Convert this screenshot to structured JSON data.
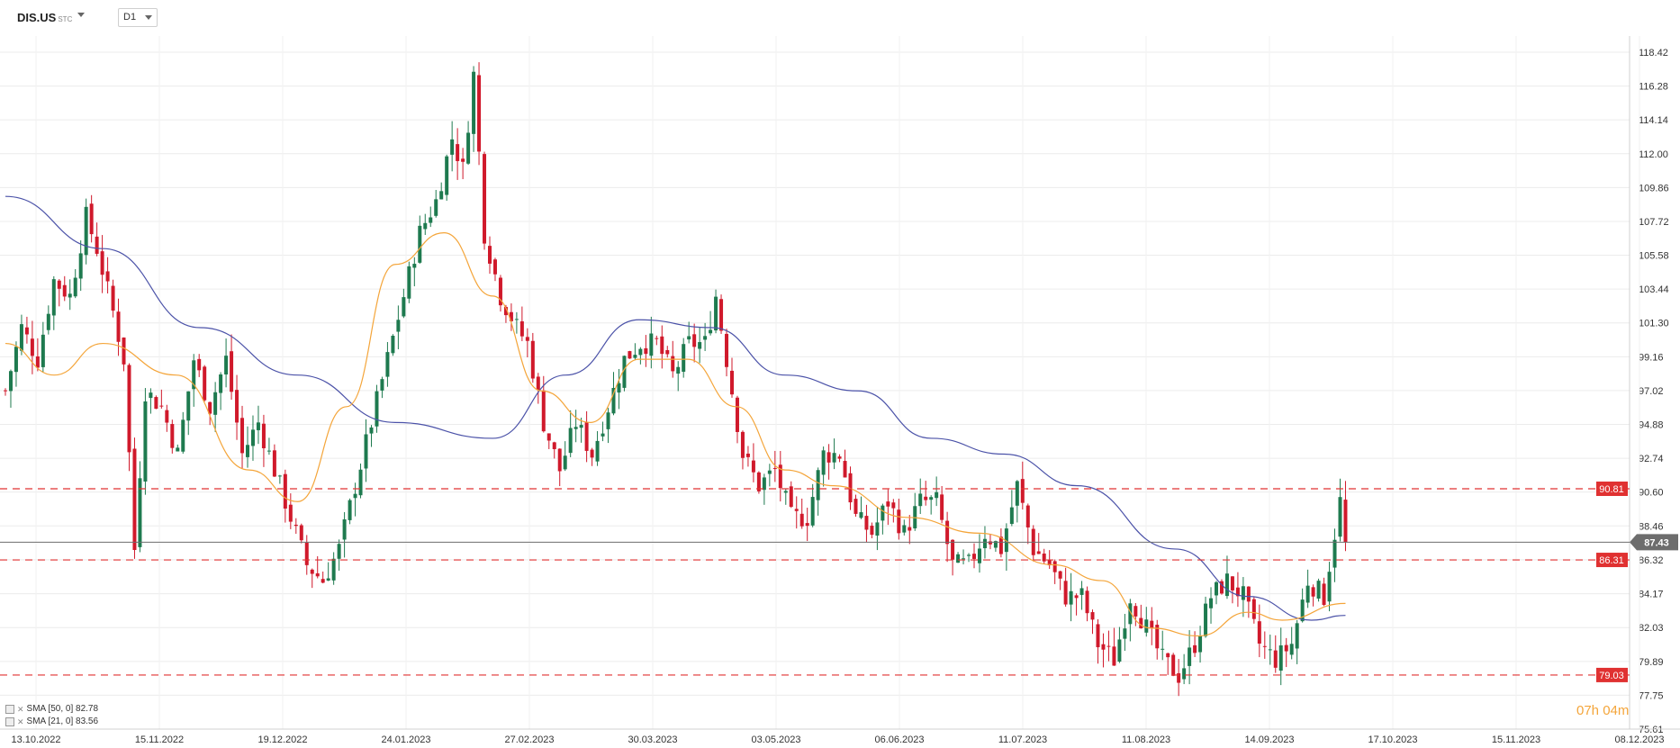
{
  "header": {
    "symbol": "DIS.US",
    "symbol_sub": "STC",
    "timeframe": "D1"
  },
  "indicators": [
    {
      "label": "SMA [50, 0] 82.78"
    },
    {
      "label": "SMA [21, 0] 83.56"
    }
  ],
  "countdown": "07h 04m",
  "colors": {
    "up": "#1e7a4f",
    "down": "#d0192b",
    "sma50": "#4b52a8",
    "sma21": "#f4a53a",
    "level": "#e03131",
    "current": "#6d6d6d"
  },
  "chart_data": {
    "type": "candlestick",
    "y_axis": {
      "min": 75.61,
      "max": 118.42,
      "position": "right",
      "ticks": [
        118.42,
        116.28,
        114.14,
        112.0,
        109.86,
        107.72,
        105.58,
        103.44,
        101.3,
        99.16,
        97.02,
        94.88,
        92.74,
        90.6,
        88.46,
        86.32,
        84.17,
        82.03,
        79.89,
        77.75,
        75.61
      ]
    },
    "x_axis": {
      "labels": [
        "13.10.2022",
        "15.11.2022",
        "19.12.2022",
        "24.01.2023",
        "27.02.2023",
        "30.03.2023",
        "03.05.2023",
        "06.06.2023",
        "11.07.2023",
        "11.08.2023",
        "14.09.2023",
        "17.10.2023",
        "15.11.2023",
        "08.12.2023"
      ]
    },
    "horizontal_levels": [
      90.81,
      86.31,
      79.03
    ],
    "current_price": 87.43,
    "grid": true,
    "series_path": [
      [
        0,
        97
      ],
      [
        3,
        101
      ],
      [
        6,
        99
      ],
      [
        9,
        104
      ],
      [
        12,
        103
      ],
      [
        15,
        108
      ],
      [
        17,
        106
      ],
      [
        20,
        102
      ],
      [
        22,
        99
      ],
      [
        24,
        87
      ],
      [
        26,
        97
      ],
      [
        29,
        96
      ],
      [
        32,
        93
      ],
      [
        35,
        99
      ],
      [
        38,
        96
      ],
      [
        41,
        99
      ],
      [
        44,
        93
      ],
      [
        47,
        95
      ],
      [
        50,
        92
      ],
      [
        53,
        89
      ],
      [
        56,
        86
      ],
      [
        59,
        85
      ],
      [
        62,
        87
      ],
      [
        65,
        91
      ],
      [
        68,
        95
      ],
      [
        71,
        99
      ],
      [
        74,
        103
      ],
      [
        77,
        107
      ],
      [
        80,
        109
      ],
      [
        83,
        113
      ],
      [
        85,
        111
      ],
      [
        87,
        117
      ],
      [
        89,
        107
      ],
      [
        92,
        103
      ],
      [
        95,
        101
      ],
      [
        97,
        100
      ],
      [
        100,
        95
      ],
      [
        103,
        92
      ],
      [
        106,
        95
      ],
      [
        109,
        93
      ],
      [
        112,
        96
      ],
      [
        115,
        99
      ],
      [
        118,
        100
      ],
      [
        121,
        100
      ],
      [
        124,
        98
      ],
      [
        127,
        100
      ],
      [
        130,
        100
      ],
      [
        132,
        103
      ],
      [
        134,
        99
      ],
      [
        137,
        93
      ],
      [
        140,
        91
      ],
      [
        143,
        92
      ],
      [
        146,
        89
      ],
      [
        149,
        89
      ],
      [
        152,
        93
      ],
      [
        155,
        93
      ],
      [
        158,
        89
      ],
      [
        161,
        88
      ],
      [
        164,
        90
      ],
      [
        167,
        88
      ],
      [
        170,
        90
      ],
      [
        173,
        90
      ],
      [
        176,
        86
      ],
      [
        179,
        86
      ],
      [
        182,
        88
      ],
      [
        185,
        87
      ],
      [
        188,
        91
      ],
      [
        191,
        87
      ],
      [
        194,
        86
      ],
      [
        197,
        84
      ],
      [
        200,
        84
      ],
      [
        203,
        81
      ],
      [
        206,
        80
      ],
      [
        209,
        84
      ],
      [
        212,
        82
      ],
      [
        215,
        80
      ],
      [
        218,
        79
      ],
      [
        221,
        81
      ],
      [
        224,
        84
      ],
      [
        227,
        85
      ],
      [
        230,
        84
      ],
      [
        233,
        81
      ],
      [
        236,
        80
      ],
      [
        239,
        81
      ],
      [
        242,
        85
      ],
      [
        245,
        84
      ],
      [
        248,
        90
      ],
      [
        249,
        87.43
      ]
    ],
    "sma50": [
      [
        0,
        109.3
      ],
      [
        20,
        106
      ],
      [
        40,
        101
      ],
      [
        60,
        98
      ],
      [
        80,
        95
      ],
      [
        100,
        94
      ],
      [
        115,
        98
      ],
      [
        130,
        101.5
      ],
      [
        145,
        101
      ],
      [
        160,
        98
      ],
      [
        175,
        97
      ],
      [
        190,
        94
      ],
      [
        205,
        93
      ],
      [
        220,
        91
      ],
      [
        240,
        87
      ],
      [
        255,
        84
      ],
      [
        268,
        82.5
      ],
      [
        275,
        82.8
      ]
    ],
    "sma21": [
      [
        0,
        100
      ],
      [
        10,
        98
      ],
      [
        20,
        100
      ],
      [
        35,
        98
      ],
      [
        50,
        92
      ],
      [
        60,
        90
      ],
      [
        70,
        96
      ],
      [
        80,
        105
      ],
      [
        90,
        107
      ],
      [
        100,
        103
      ],
      [
        110,
        97
      ],
      [
        120,
        95
      ],
      [
        130,
        99
      ],
      [
        140,
        99
      ],
      [
        150,
        96
      ],
      [
        160,
        92
      ],
      [
        170,
        91
      ],
      [
        185,
        89
      ],
      [
        200,
        88
      ],
      [
        215,
        86
      ],
      [
        225,
        85
      ],
      [
        235,
        82
      ],
      [
        245,
        81.5
      ],
      [
        255,
        83
      ],
      [
        262,
        82.5
      ],
      [
        275,
        83.56
      ]
    ]
  }
}
